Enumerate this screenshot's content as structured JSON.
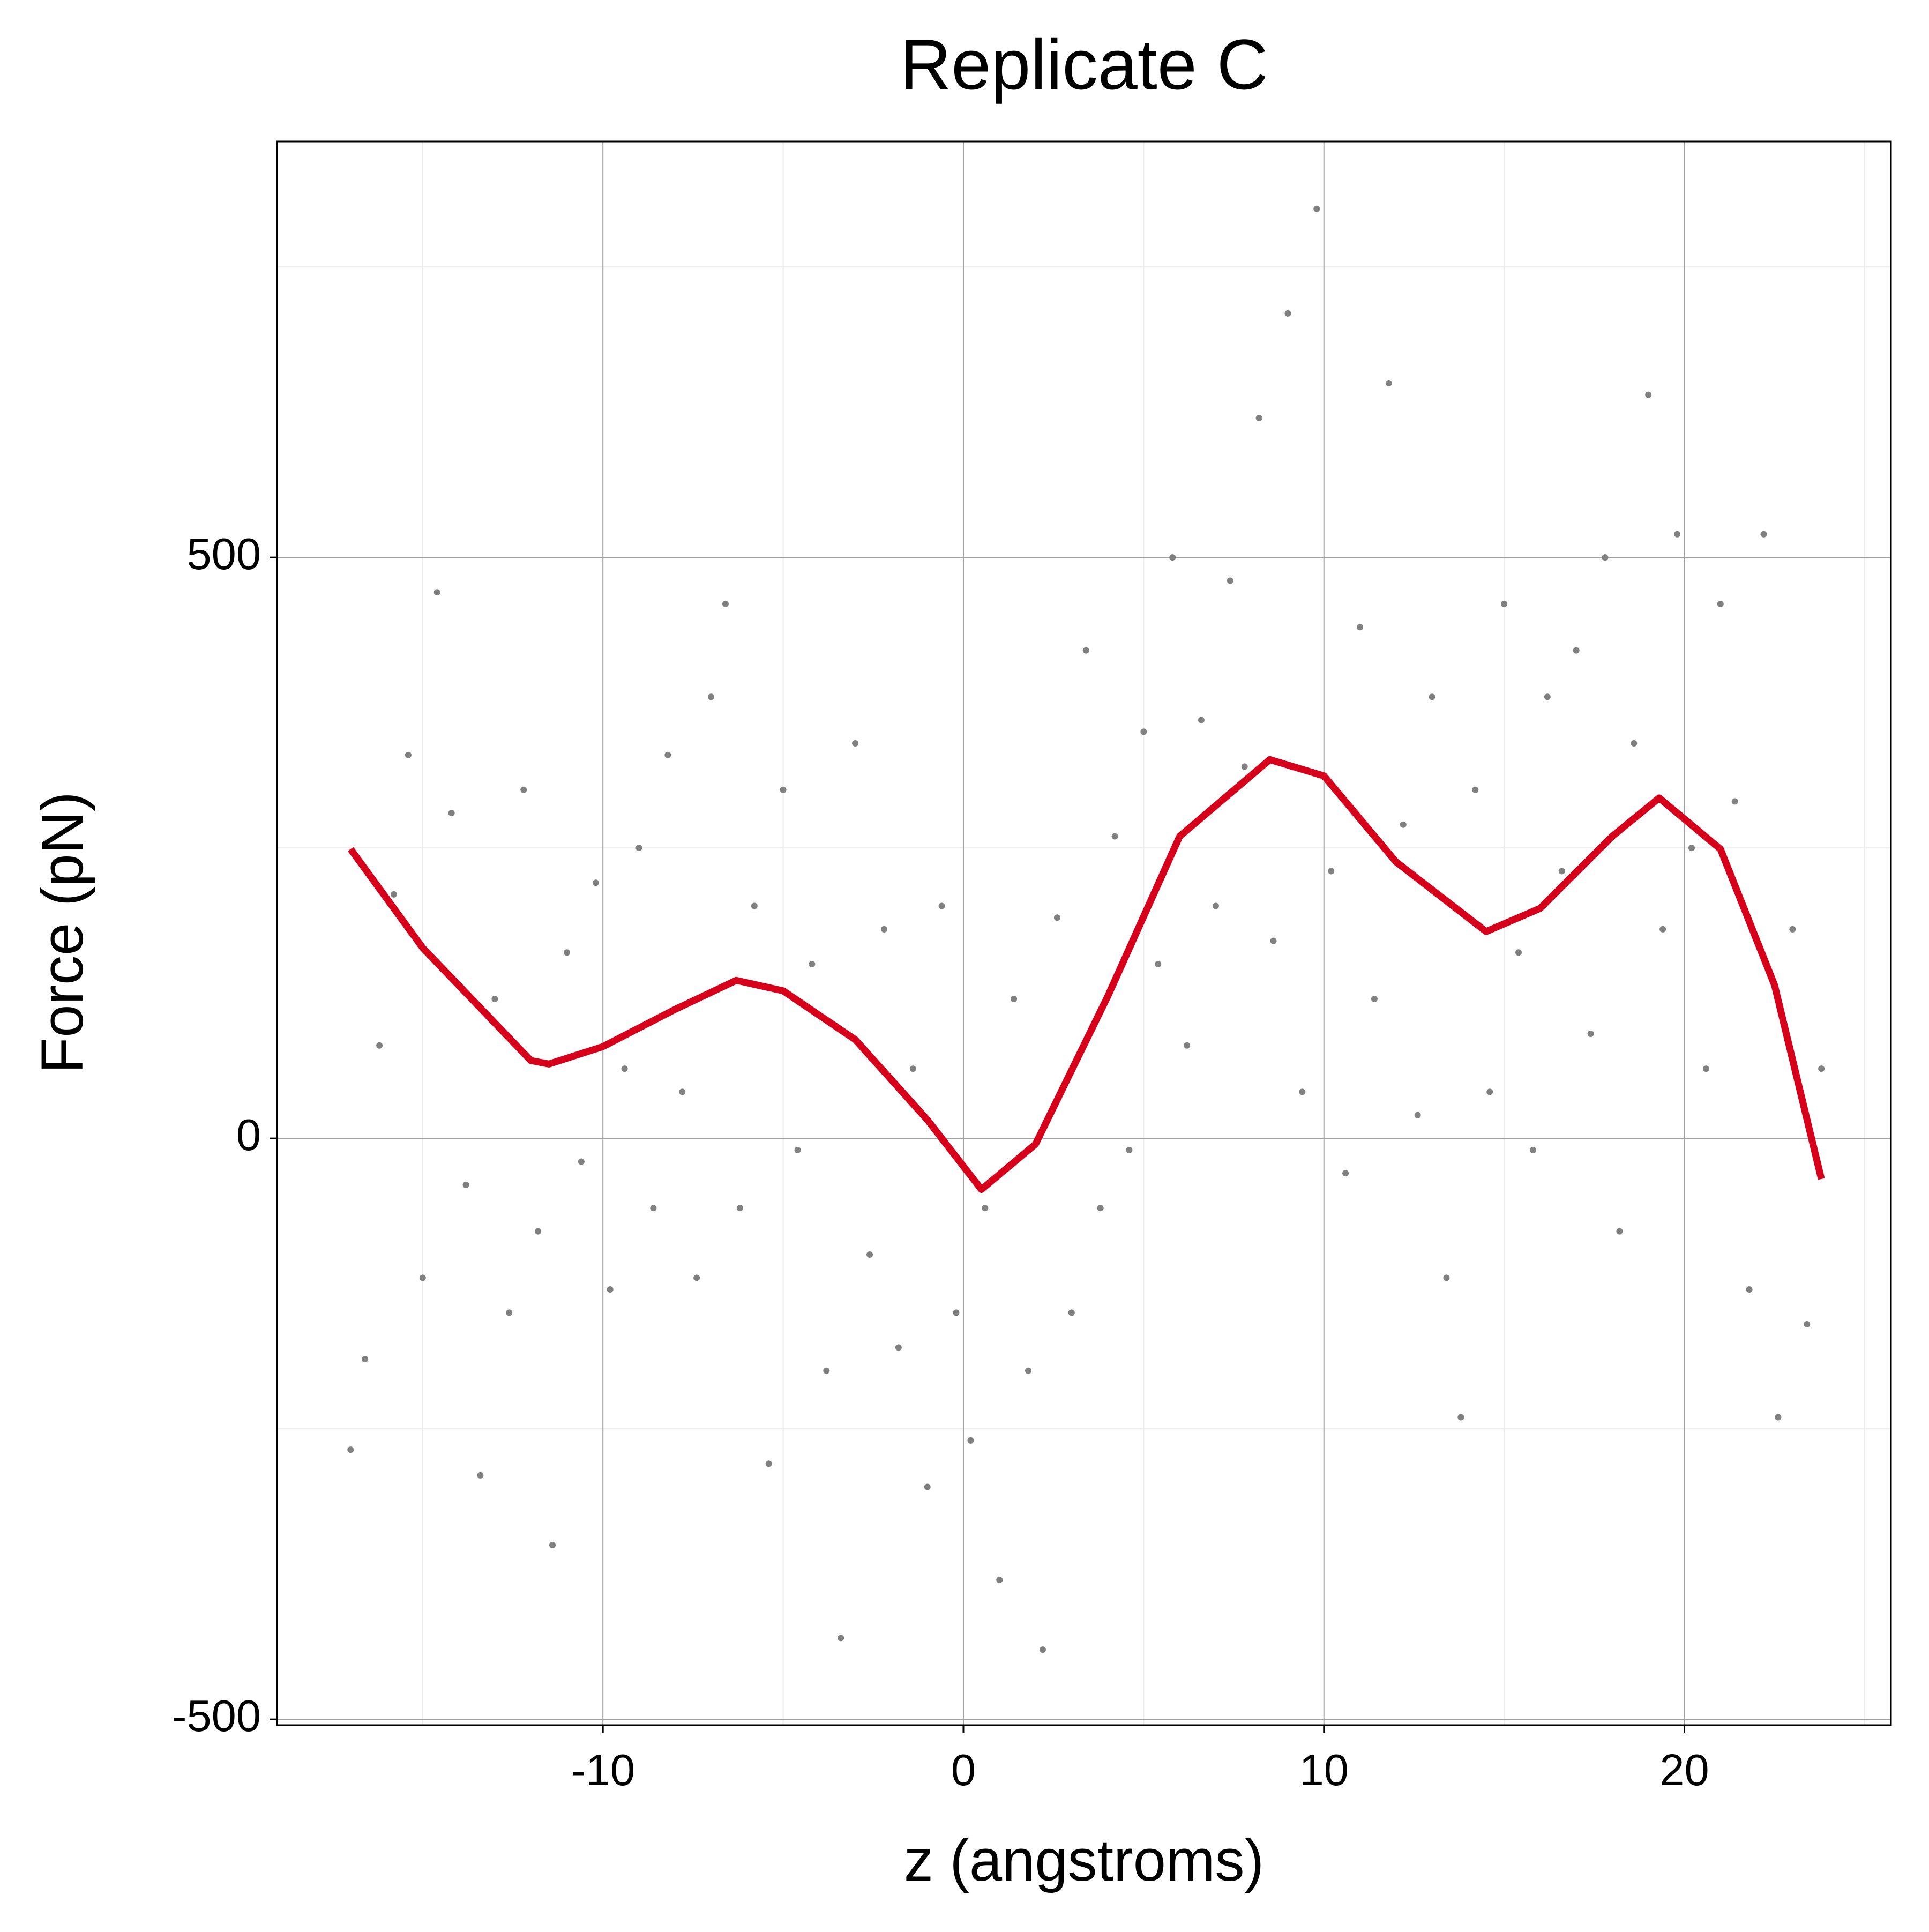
{
  "chart_data": {
    "type": "scatter",
    "title": "Replicate C",
    "x_label": "z (angstroms)",
    "y_label": "Force (pN)",
    "xlim": [
      -19.04,
      25.73
    ],
    "ylim": [
      -505,
      858
    ],
    "xticks": [
      -10,
      0,
      10,
      20
    ],
    "yticks": [
      -500,
      0,
      500
    ],
    "xminor": [
      -15,
      -5,
      5,
      15,
      25
    ],
    "yminor": [
      -250,
      250,
      750
    ],
    "grid": true,
    "points": {
      "color": "#808080",
      "x": [
        -17.0,
        -16.6,
        -16.2,
        -15.8,
        -15.4,
        -15.0,
        -14.6,
        -14.2,
        -13.8,
        -13.4,
        -13.0,
        -12.6,
        -12.2,
        -11.8,
        -11.4,
        -11.0,
        -10.6,
        -10.2,
        -9.8,
        -9.4,
        -9.0,
        -8.6,
        -8.2,
        -7.8,
        -7.4,
        -7.0,
        -6.6,
        -6.2,
        -5.8,
        -5.4,
        -5.0,
        -4.6,
        -4.2,
        -3.8,
        -3.4,
        -3.0,
        -2.6,
        -2.2,
        -1.8,
        -1.4,
        -1.0,
        -0.6,
        -0.2,
        0.2,
        0.6,
        1.0,
        1.4,
        1.8,
        2.2,
        2.6,
        3.0,
        3.4,
        3.8,
        4.2,
        4.6,
        5.0,
        5.4,
        5.8,
        6.2,
        6.6,
        7.0,
        7.4,
        7.8,
        8.2,
        8.6,
        9.0,
        9.4,
        9.8,
        10.2,
        10.6,
        11.0,
        11.4,
        11.8,
        12.2,
        12.6,
        13.0,
        13.4,
        13.8,
        14.2,
        14.6,
        15.0,
        15.4,
        15.8,
        16.2,
        16.6,
        17.0,
        17.4,
        17.8,
        18.2,
        18.6,
        19.0,
        19.4,
        19.8,
        20.2,
        20.6,
        21.0,
        21.4,
        21.8,
        22.2,
        22.6,
        23.0,
        23.4,
        23.8
      ],
      "y": [
        -268,
        -190,
        80,
        210,
        330,
        -120,
        470,
        280,
        -40,
        -290,
        120,
        -150,
        300,
        -80,
        -350,
        160,
        -20,
        220,
        -130,
        60,
        250,
        -60,
        330,
        40,
        -120,
        380,
        460,
        -60,
        200,
        -280,
        300,
        -10,
        150,
        -200,
        -430,
        340,
        -100,
        180,
        -180,
        60,
        -300,
        200,
        -150,
        -260,
        -60,
        -380,
        120,
        -200,
        -440,
        190,
        -150,
        420,
        -60,
        260,
        -10,
        350,
        150,
        500,
        80,
        360,
        200,
        480,
        320,
        620,
        170,
        710,
        40,
        800,
        230,
        -30,
        440,
        120,
        650,
        270,
        20,
        380,
        -120,
        -240,
        300,
        40,
        460,
        160,
        -10,
        380,
        230,
        420,
        90,
        500,
        -80,
        340,
        640,
        180,
        520,
        250,
        60,
        460,
        290,
        -130,
        520,
        -240,
        180,
        -160,
        60
      ]
    },
    "fit": {
      "color": "#d7001a",
      "x": [
        -17,
        -15,
        -12,
        -11.5,
        -10,
        -8,
        -6.3,
        -5,
        -3,
        -1,
        0.5,
        2,
        4,
        6,
        8.5,
        10,
        12,
        14.5,
        16,
        18,
        19.3,
        21,
        22.5,
        23.8
      ],
      "y": [
        249,
        164,
        67,
        64,
        79,
        111,
        136,
        127,
        85,
        16,
        -44,
        -5,
        122,
        260,
        326,
        312,
        238,
        178,
        198,
        260,
        293,
        249,
        132,
        -35
      ]
    }
  }
}
